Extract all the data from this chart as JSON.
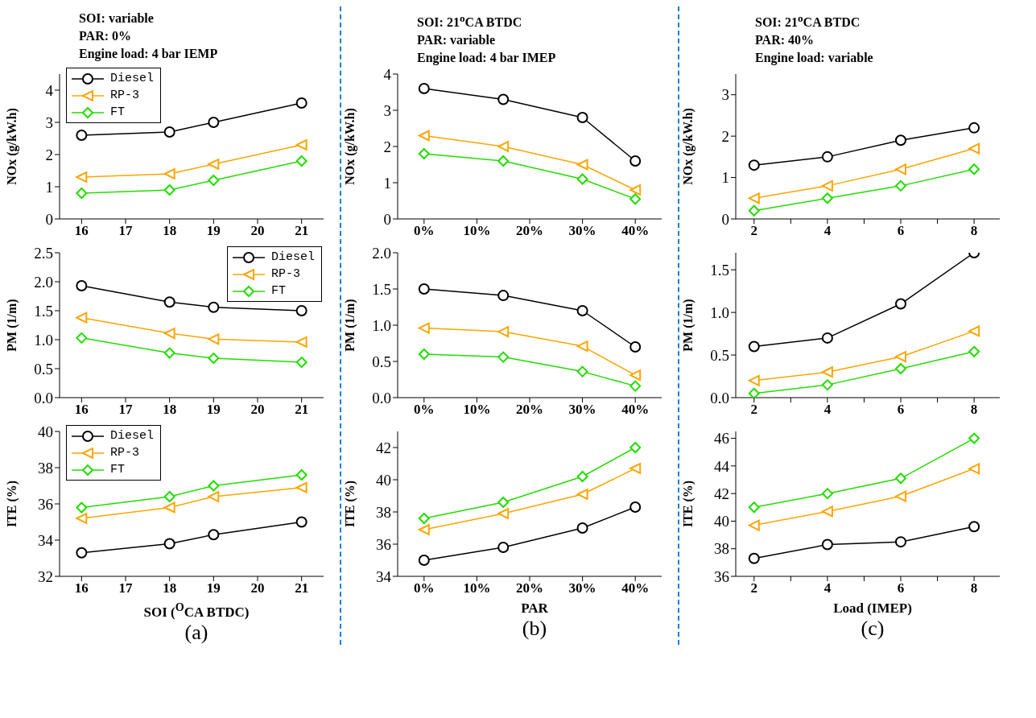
{
  "chart_data": [
    {
      "type": "line",
      "title": "SOI: variable\nPAR: 0%\nEngine load: 4 bar IEMP",
      "ylabel": "NOx (g/kW.h)",
      "x": [
        16,
        18,
        19,
        21
      ],
      "xlim": [
        15.5,
        21.5
      ],
      "xticks": [
        16,
        17,
        18,
        19,
        20,
        21
      ],
      "ylim": [
        0,
        4.5
      ],
      "yticks": [
        0,
        1,
        2,
        3,
        4
      ],
      "legend": "top left",
      "series": [
        {
          "name": "Diesel",
          "color": "#000000",
          "marker": "circle",
          "values": [
            2.6,
            2.7,
            3.0,
            3.6
          ]
        },
        {
          "name": "RP-3",
          "color": "#ffa500",
          "marker": "triangle",
          "values": [
            1.3,
            1.4,
            1.7,
            2.3
          ]
        },
        {
          "name": "FT",
          "color": "#22dd00",
          "marker": "diamond",
          "values": [
            0.8,
            0.9,
            1.2,
            1.8
          ]
        }
      ]
    },
    {
      "type": "line",
      "ylabel": "PM (1/m)",
      "x": [
        16,
        18,
        19,
        21
      ],
      "xlim": [
        15.5,
        21.5
      ],
      "xticks": [
        16,
        17,
        18,
        19,
        20,
        21
      ],
      "ylim": [
        0,
        2.5
      ],
      "yticks": [
        {
          "value": 0,
          "label": "0.0"
        },
        {
          "value": 0.5,
          "label": "0.5"
        },
        {
          "value": 1,
          "label": "1.0"
        },
        {
          "value": 1.5,
          "label": "1.5"
        },
        {
          "value": 2,
          "label": "2.0"
        },
        {
          "value": 2.5,
          "label": "2.5"
        }
      ],
      "legend": "top right",
      "series": [
        {
          "name": "Diesel",
          "color": "#000000",
          "marker": "circle",
          "values": [
            1.93,
            1.65,
            1.56,
            1.5
          ]
        },
        {
          "name": "RP-3",
          "color": "#ffa500",
          "marker": "triangle",
          "values": [
            1.38,
            1.11,
            1.01,
            0.96
          ]
        },
        {
          "name": "FT",
          "color": "#22dd00",
          "marker": "diamond",
          "values": [
            1.03,
            0.77,
            0.68,
            0.61
          ]
        }
      ]
    },
    {
      "type": "line",
      "ylabel": "ITE (%)",
      "xlabel": "SOI ($^{O}$CA BTDC)",
      "annotations": [
        "(a)"
      ],
      "x": [
        16,
        18,
        19,
        21
      ],
      "xlim": [
        15.5,
        21.5
      ],
      "xticks": [
        16,
        17,
        18,
        19,
        20,
        21
      ],
      "ylim": [
        32,
        40
      ],
      "yticks": [
        32,
        34,
        36,
        38,
        40
      ],
      "legend": "top left",
      "series": [
        {
          "name": "Diesel",
          "color": "#000000",
          "marker": "circle",
          "values": [
            33.3,
            33.8,
            34.3,
            35.0
          ]
        },
        {
          "name": "RP-3",
          "color": "#ffa500",
          "marker": "triangle",
          "values": [
            35.2,
            35.8,
            36.4,
            36.9
          ]
        },
        {
          "name": "FT",
          "color": "#22dd00",
          "marker": "diamond",
          "values": [
            35.8,
            36.4,
            37.0,
            37.6
          ]
        }
      ]
    },
    {
      "type": "line",
      "title": "SOI: 21$^{o}$CA BTDC\nPAR: variable\nEngine load: 4 bar IMEP",
      "ylabel": "NOx (g/kW.h)",
      "x": [
        0,
        15,
        30,
        40
      ],
      "xlim": [
        -5,
        45
      ],
      "xticks": [
        {
          "value": 0,
          "label": "0%"
        },
        {
          "value": 10,
          "label": "10%"
        },
        {
          "value": 20,
          "label": "20%"
        },
        {
          "value": 30,
          "label": "30%"
        },
        {
          "value": 40,
          "label": "40%"
        }
      ],
      "ylim": [
        0,
        4
      ],
      "yticks": [
        0,
        1,
        2,
        3,
        4
      ],
      "series": [
        {
          "color": "#000000",
          "marker": "circle",
          "values": [
            3.6,
            3.3,
            2.8,
            1.6
          ]
        },
        {
          "color": "#ffa500",
          "marker": "triangle",
          "values": [
            2.3,
            2.0,
            1.5,
            0.8
          ]
        },
        {
          "color": "#22dd00",
          "marker": "diamond",
          "values": [
            1.8,
            1.6,
            1.1,
            0.55
          ]
        }
      ]
    },
    {
      "type": "line",
      "ylabel": "PM (1/m)",
      "x": [
        0,
        15,
        30,
        40
      ],
      "xlim": [
        -5,
        45
      ],
      "xticks": [
        {
          "value": 0,
          "label": "0%"
        },
        {
          "value": 10,
          "label": "10%"
        },
        {
          "value": 20,
          "label": "20%"
        },
        {
          "value": 30,
          "label": "30%"
        },
        {
          "value": 40,
          "label": "40%"
        }
      ],
      "ylim": [
        0,
        2
      ],
      "yticks": [
        {
          "value": 0,
          "label": "0.0"
        },
        {
          "value": 0.5,
          "label": "0.5"
        },
        {
          "value": 1,
          "label": "1.0"
        },
        {
          "value": 1.5,
          "label": "1.5"
        },
        {
          "value": 2,
          "label": "2.0"
        }
      ],
      "series": [
        {
          "color": "#000000",
          "marker": "circle",
          "values": [
            1.5,
            1.41,
            1.2,
            0.7
          ]
        },
        {
          "color": "#ffa500",
          "marker": "triangle",
          "values": [
            0.96,
            0.91,
            0.71,
            0.31
          ]
        },
        {
          "color": "#22dd00",
          "marker": "diamond",
          "values": [
            0.6,
            0.56,
            0.36,
            0.16
          ]
        }
      ]
    },
    {
      "type": "line",
      "ylabel": "ITE (%)",
      "xlabel": "PAR",
      "annotations": [
        "(b)"
      ],
      "x": [
        0,
        15,
        30,
        40
      ],
      "xlim": [
        -5,
        45
      ],
      "xticks": [
        {
          "value": 0,
          "label": "0%"
        },
        {
          "value": 10,
          "label": "10%"
        },
        {
          "value": 20,
          "label": "20%"
        },
        {
          "value": 30,
          "label": "30%"
        },
        {
          "value": 40,
          "label": "40%"
        }
      ],
      "ylim": [
        34,
        43
      ],
      "yticks": [
        34,
        36,
        38,
        40,
        42
      ],
      "series": [
        {
          "color": "#000000",
          "marker": "circle",
          "values": [
            35.0,
            35.8,
            37.0,
            38.3
          ]
        },
        {
          "color": "#ffa500",
          "marker": "triangle",
          "values": [
            36.9,
            37.9,
            39.1,
            40.7
          ]
        },
        {
          "color": "#22dd00",
          "marker": "diamond",
          "values": [
            37.6,
            38.6,
            40.2,
            42.0
          ]
        }
      ]
    },
    {
      "type": "line",
      "title": "SOI: 21$^{o}$CA BTDC\nPAR: 40%\nEngine load: variable",
      "ylabel": "NOx (g/kW.h)",
      "x": [
        2,
        4,
        6,
        8
      ],
      "xlim": [
        1.5,
        8.7
      ],
      "xticks": [
        2,
        {
          "value": 3,
          "label": null
        },
        4,
        {
          "value": 5,
          "label": null
        },
        6,
        {
          "value": 7,
          "label": null
        },
        8
      ],
      "ylim": [
        0,
        3.5
      ],
      "yticks": [
        0,
        1,
        2,
        3
      ],
      "series": [
        {
          "color": "#000000",
          "marker": "circle",
          "values": [
            1.3,
            1.5,
            1.9,
            2.2
          ]
        },
        {
          "color": "#ffa500",
          "marker": "triangle",
          "values": [
            0.5,
            0.8,
            1.2,
            1.7
          ]
        },
        {
          "color": "#22dd00",
          "marker": "diamond",
          "values": [
            0.2,
            0.5,
            0.8,
            1.2
          ]
        }
      ]
    },
    {
      "type": "line",
      "ylabel": "PM (1/m)",
      "x": [
        2,
        4,
        6,
        8
      ],
      "xlim": [
        1.5,
        8.7
      ],
      "xticks": [
        2,
        {
          "value": 3,
          "label": null
        },
        4,
        {
          "value": 5,
          "label": null
        },
        6,
        {
          "value": 7,
          "label": null
        },
        8
      ],
      "ylim": [
        0,
        1.7
      ],
      "yticks": [
        {
          "value": 0,
          "label": "0.0"
        },
        {
          "value": 0.5,
          "label": "0.5"
        },
        {
          "value": 1,
          "label": "1.0"
        },
        {
          "value": 1.5,
          "label": "1.5"
        }
      ],
      "series": [
        {
          "color": "#000000",
          "marker": "circle",
          "values": [
            0.6,
            0.7,
            1.1,
            1.7
          ]
        },
        {
          "color": "#ffa500",
          "marker": "triangle",
          "values": [
            0.2,
            0.3,
            0.48,
            0.78
          ]
        },
        {
          "color": "#22dd00",
          "marker": "diamond",
          "values": [
            0.05,
            0.15,
            0.34,
            0.54
          ]
        }
      ]
    },
    {
      "type": "line",
      "ylabel": "ITE (%)",
      "xlabel": "Load (IMEP)",
      "annotations": [
        "(c)"
      ],
      "x": [
        2,
        4,
        6,
        8
      ],
      "xlim": [
        1.5,
        8.7
      ],
      "xticks": [
        2,
        {
          "value": 3,
          "label": null
        },
        4,
        {
          "value": 5,
          "label": null
        },
        6,
        {
          "value": 7,
          "label": null
        },
        8
      ],
      "ylim": [
        36,
        46.5
      ],
      "yticks": [
        36,
        38,
        40,
        42,
        44,
        46
      ],
      "series": [
        {
          "color": "#000000",
          "marker": "circle",
          "values": [
            37.3,
            38.3,
            38.5,
            39.6
          ]
        },
        {
          "color": "#ffa500",
          "marker": "triangle",
          "values": [
            39.7,
            40.7,
            41.8,
            43.8
          ]
        },
        {
          "color": "#22dd00",
          "marker": "diamond",
          "values": [
            41.0,
            42.0,
            43.1,
            46.0
          ]
        }
      ]
    }
  ]
}
